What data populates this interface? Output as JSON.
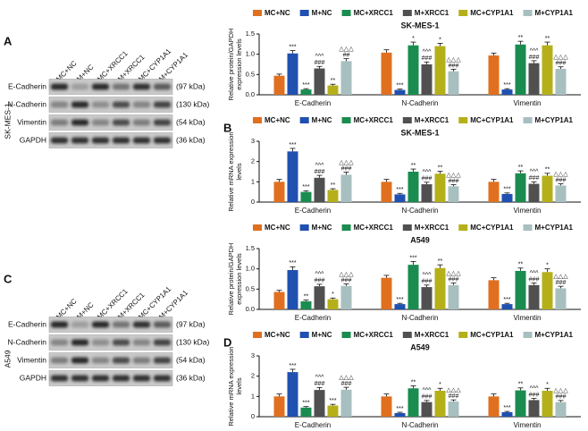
{
  "blots": [
    {
      "letter": "A",
      "cell_line": "SK-MES-1",
      "lanes": [
        "MC+NC",
        "M+NC",
        "MC+XRCC1",
        "M+XRCC1",
        "MC+CYP1A1",
        "M+CYP1A1"
      ],
      "rows": [
        {
          "protein": "E-Cadherin",
          "size": "(97 kDa)"
        },
        {
          "protein": "N-Cadherin",
          "size": "(130 kDa)"
        },
        {
          "protein": "Vimentin",
          "size": "(54 kDa)"
        },
        {
          "protein": "GAPDH",
          "size": "(36 kDa)"
        }
      ]
    },
    {
      "letter": "C",
      "cell_line": "A549",
      "lanes": [
        "MC+NC",
        "M+NC",
        "MC+XRCC1",
        "M+XRCC1",
        "MC+CYP1A1",
        "M+CYP1A1"
      ],
      "rows": [
        {
          "protein": "E-Cadherin",
          "size": "(97 kDa)"
        },
        {
          "protein": "N-Cadherin",
          "size": "(130 kDa)"
        },
        {
          "protein": "Vimentin",
          "size": "(54 kDa)"
        },
        {
          "protein": "GAPDH",
          "size": "(36 kDa)"
        }
      ]
    }
  ],
  "chart_data": [
    {
      "type": "bar",
      "title": "SK-MES-1",
      "ylabel": "Relative protein/GAPDH expression levels",
      "categories": [
        "E-Cadherin",
        "N-Cadherin",
        "Vimentin"
      ],
      "ylim": [
        0,
        1.5
      ],
      "yticks": [
        {
          "value": 0,
          "label": "0.0"
        },
        {
          "value": 0.5,
          "label": "0.5"
        },
        {
          "value": 1,
          "label": "1.0"
        },
        {
          "value": 1.5,
          "label": "1.5"
        }
      ],
      "series": [
        {
          "name": "MC+NC",
          "color": "#e07020",
          "values": [
            0.47,
            1.04,
            0.97
          ],
          "errors": [
            0.04,
            0.07,
            0.06
          ],
          "annotations": [
            null,
            null,
            null
          ]
        },
        {
          "name": "M+NC",
          "color": "#2050b0",
          "values": [
            1.02,
            0.12,
            0.13
          ],
          "errors": [
            0.07,
            0.02,
            0.02
          ],
          "annotations": [
            [
              "***"
            ],
            [
              "***"
            ],
            [
              "***"
            ]
          ]
        },
        {
          "name": "MC+XRCC1",
          "color": "#1a8c50",
          "values": [
            0.13,
            1.22,
            1.24
          ],
          "errors": [
            0.02,
            0.08,
            0.08
          ],
          "annotations": [
            [
              "***"
            ],
            [
              "*"
            ],
            [
              "**"
            ]
          ]
        },
        {
          "name": "M+XRCC1",
          "color": "#505050",
          "values": [
            0.65,
            0.75,
            0.78
          ],
          "errors": [
            0.05,
            0.06,
            0.06
          ],
          "annotations": [
            [
              "^^^",
              "###"
            ],
            [
              "^^^",
              "###"
            ],
            [
              "^^^",
              "###"
            ]
          ]
        },
        {
          "name": "MC+CYP1A1",
          "color": "#b5b01a",
          "values": [
            0.23,
            1.2,
            1.22
          ],
          "errors": [
            0.03,
            0.07,
            0.08
          ],
          "annotations": [
            [
              "**"
            ],
            [
              "*"
            ],
            [
              "**"
            ]
          ]
        },
        {
          "name": "M+CYP1A1",
          "color": "#a8bfc0",
          "values": [
            0.83,
            0.58,
            0.64
          ],
          "errors": [
            0.06,
            0.05,
            0.05
          ],
          "annotations": [
            [
              "△△△",
              "##"
            ],
            [
              "△△△",
              "###"
            ],
            [
              "△△△",
              "###"
            ]
          ]
        }
      ]
    },
    {
      "type": "bar",
      "panel_label": "B",
      "title": "SK-MES-1",
      "ylabel": "Relative mRNA expression levels",
      "categories": [
        "E-Cadherin",
        "N-Cadherin",
        "Vimentin"
      ],
      "ylim": [
        0,
        3
      ],
      "yticks": [
        0,
        1,
        2,
        3
      ],
      "series": [
        {
          "name": "MC+NC",
          "color": "#e07020",
          "values": [
            1.0,
            1.0,
            1.0
          ],
          "errors": [
            0.12,
            0.12,
            0.12
          ],
          "annotations": [
            null,
            null,
            null
          ]
        },
        {
          "name": "M+NC",
          "color": "#2050b0",
          "values": [
            2.5,
            0.38,
            0.4
          ],
          "errors": [
            0.15,
            0.05,
            0.05
          ],
          "annotations": [
            [
              "***"
            ],
            [
              "***"
            ],
            [
              "***"
            ]
          ]
        },
        {
          "name": "MC+XRCC1",
          "color": "#1a8c50",
          "values": [
            0.5,
            1.5,
            1.42
          ],
          "errors": [
            0.06,
            0.13,
            0.12
          ],
          "annotations": [
            [
              "***"
            ],
            [
              "**"
            ],
            [
              "**"
            ]
          ]
        },
        {
          "name": "M+XRCC1",
          "color": "#505050",
          "values": [
            1.2,
            0.88,
            0.9
          ],
          "errors": [
            0.12,
            0.1,
            0.1
          ],
          "annotations": [
            [
              "^^^",
              "###"
            ],
            [
              "^^^",
              "###"
            ],
            [
              "^^^",
              "###"
            ]
          ]
        },
        {
          "name": "MC+CYP1A1",
          "color": "#b5b01a",
          "values": [
            0.6,
            1.4,
            1.3
          ],
          "errors": [
            0.06,
            0.12,
            0.12
          ],
          "annotations": [
            [
              "**"
            ],
            [
              "**"
            ],
            [
              "**"
            ]
          ]
        },
        {
          "name": "M+CYP1A1",
          "color": "#a8bfc0",
          "values": [
            1.35,
            0.78,
            0.82
          ],
          "errors": [
            0.13,
            0.08,
            0.08
          ],
          "annotations": [
            [
              "△△△",
              "###"
            ],
            [
              "△△△",
              "###"
            ],
            [
              "△△△",
              "###"
            ]
          ]
        }
      ]
    },
    {
      "type": "bar",
      "title": "A549",
      "ylabel": "Relative protein/GAPDH expression levels",
      "categories": [
        "E-Cadherin",
        "N-Cadherin",
        "Vimentin"
      ],
      "ylim": [
        0,
        1.5
      ],
      "yticks": [
        {
          "value": 0,
          "label": "0.0"
        },
        {
          "value": 0.5,
          "label": "0.5"
        },
        {
          "value": 1,
          "label": "1.0"
        },
        {
          "value": 1.5,
          "label": "1.5"
        }
      ],
      "series": [
        {
          "name": "MC+NC",
          "color": "#e07020",
          "values": [
            0.43,
            0.78,
            0.72
          ],
          "errors": [
            0.04,
            0.06,
            0.06
          ],
          "annotations": [
            null,
            null,
            null
          ]
        },
        {
          "name": "M+NC",
          "color": "#2050b0",
          "values": [
            0.97,
            0.13,
            0.13
          ],
          "errors": [
            0.08,
            0.02,
            0.02
          ],
          "annotations": [
            [
              "***"
            ],
            [
              "***"
            ],
            [
              "***"
            ]
          ]
        },
        {
          "name": "MC+XRCC1",
          "color": "#1a8c50",
          "values": [
            0.2,
            1.1,
            0.95
          ],
          "errors": [
            0.03,
            0.08,
            0.07
          ],
          "annotations": [
            [
              "**"
            ],
            [
              "***"
            ],
            [
              "**"
            ]
          ]
        },
        {
          "name": "M+XRCC1",
          "color": "#505050",
          "values": [
            0.57,
            0.55,
            0.6
          ],
          "errors": [
            0.05,
            0.05,
            0.05
          ],
          "annotations": [
            [
              "^^^",
              "###"
            ],
            [
              "^^^",
              "###"
            ],
            [
              "^^^",
              "###"
            ]
          ]
        },
        {
          "name": "MC+CYP1A1",
          "color": "#b5b01a",
          "values": [
            0.25,
            1.02,
            0.92
          ],
          "errors": [
            0.03,
            0.08,
            0.08
          ],
          "annotations": [
            [
              "*"
            ],
            [
              "**"
            ],
            [
              "*"
            ]
          ]
        },
        {
          "name": "M+CYP1A1",
          "color": "#a8bfc0",
          "values": [
            0.58,
            0.6,
            0.52
          ],
          "errors": [
            0.05,
            0.05,
            0.05
          ],
          "annotations": [
            [
              "△△△",
              "###"
            ],
            [
              "△△△",
              "###"
            ],
            [
              "△△△",
              "###"
            ]
          ]
        }
      ]
    },
    {
      "type": "bar",
      "panel_label": "D",
      "title": "A549",
      "ylabel": "Relative mRNA expression levels",
      "categories": [
        "E-Cadherin",
        "N-Cadherin",
        "Vimentin"
      ],
      "ylim": [
        0,
        3
      ],
      "yticks": [
        0,
        1,
        2,
        3
      ],
      "series": [
        {
          "name": "MC+NC",
          "color": "#e07020",
          "values": [
            1.0,
            1.0,
            1.0
          ],
          "errors": [
            0.12,
            0.12,
            0.12
          ],
          "annotations": [
            null,
            null,
            null
          ]
        },
        {
          "name": "M+NC",
          "color": "#2050b0",
          "values": [
            2.2,
            0.18,
            0.22
          ],
          "errors": [
            0.14,
            0.04,
            0.04
          ],
          "annotations": [
            [
              "***"
            ],
            [
              "***"
            ],
            [
              "***"
            ]
          ]
        },
        {
          "name": "MC+XRCC1",
          "color": "#1a8c50",
          "values": [
            0.45,
            1.4,
            1.3
          ],
          "errors": [
            0.05,
            0.12,
            0.12
          ],
          "annotations": [
            [
              "***"
            ],
            [
              "**"
            ],
            [
              "**"
            ]
          ]
        },
        {
          "name": "M+XRCC1",
          "color": "#505050",
          "values": [
            1.32,
            0.72,
            0.82
          ],
          "errors": [
            0.12,
            0.08,
            0.08
          ],
          "annotations": [
            [
              "^^^",
              "###"
            ],
            [
              "^^^",
              "###"
            ],
            [
              "^^^",
              "###"
            ]
          ]
        },
        {
          "name": "MC+CYP1A1",
          "color": "#b5b01a",
          "values": [
            0.55,
            1.28,
            1.28
          ],
          "errors": [
            0.06,
            0.12,
            0.12
          ],
          "annotations": [
            [
              "***"
            ],
            [
              "*"
            ],
            [
              "*"
            ]
          ]
        },
        {
          "name": "M+CYP1A1",
          "color": "#a8bfc0",
          "values": [
            1.33,
            0.75,
            0.72
          ],
          "errors": [
            0.12,
            0.08,
            0.08
          ],
          "annotations": [
            [
              "△△△",
              "###"
            ],
            [
              "△△△",
              "###"
            ],
            [
              "△△△",
              "###"
            ]
          ]
        }
      ]
    }
  ]
}
